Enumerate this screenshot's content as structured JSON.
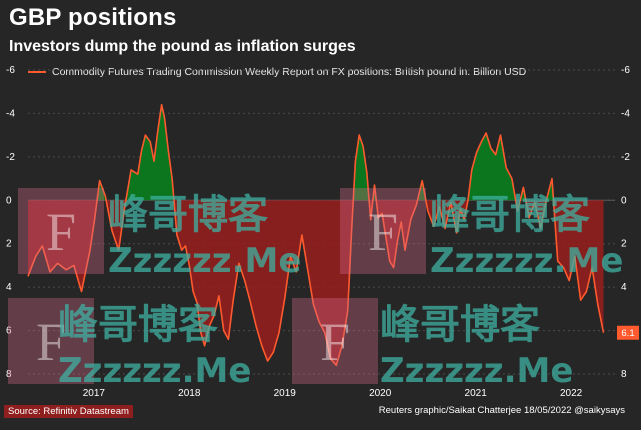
{
  "header": {
    "title": "GBP positions",
    "subtitle": "Investors dump the pound as inflation surges"
  },
  "colors": {
    "background": "#262626",
    "line": "#ff5a2e",
    "positive_fill": "#0a7a1c",
    "negative_fill": "#9a1f1f",
    "gridline": "#4a4a4a",
    "last_value_box": "#ff5a2e"
  },
  "chart_data": {
    "type": "area",
    "legend": "Commodity Futures Trading Commission Weekly Report on FX positions: British pound in. Billion USD",
    "legend_position": "top-left",
    "y_axis_inverted": true,
    "ylim": [
      -6,
      8
    ],
    "yticks": [
      "-6",
      "-4",
      "-2",
      "0",
      "2",
      "4",
      "6",
      "8"
    ],
    "xticks": [
      "2017",
      "2018",
      "2019",
      "2020",
      "2021",
      "2022"
    ],
    "xlim": [
      2016.35,
      2022.5
    ],
    "grid": "horizontal",
    "last_value_label": "6.1",
    "x": [
      2016.35,
      2016.43,
      2016.5,
      2016.58,
      2016.66,
      2016.75,
      2016.83,
      2016.91,
      2017.0,
      2017.05,
      2017.1,
      2017.16,
      2017.23,
      2017.3,
      2017.36,
      2017.43,
      2017.5,
      2017.54,
      2017.58,
      2017.63,
      2017.67,
      2017.71,
      2017.75,
      2017.78,
      2017.82,
      2017.86,
      2017.91,
      2017.96,
      2018.0,
      2018.04,
      2018.08,
      2018.12,
      2018.16,
      2018.2,
      2018.25,
      2018.3,
      2018.35,
      2018.4,
      2018.45,
      2018.5,
      2018.56,
      2018.62,
      2018.68,
      2018.74,
      2018.8,
      2018.86,
      2018.92,
      2018.98,
      2019.04,
      2019.1,
      2019.16,
      2019.22,
      2019.28,
      2019.34,
      2019.4,
      2019.46,
      2019.52,
      2019.58,
      2019.64,
      2019.7,
      2019.74,
      2019.78,
      2019.82,
      2019.86,
      2019.9,
      2019.94,
      2019.98,
      2020.02,
      2020.06,
      2020.1,
      2020.14,
      2020.18,
      2020.22,
      2020.26,
      2020.3,
      2020.36,
      2020.42,
      2020.48,
      2020.54,
      2020.6,
      2020.66,
      2020.72,
      2020.78,
      2020.84,
      2020.88,
      2020.92,
      2020.96,
      2021.0,
      2021.05,
      2021.1,
      2021.15,
      2021.2,
      2021.25,
      2021.3,
      2021.36,
      2021.42,
      2021.48,
      2021.54,
      2021.6,
      2021.66,
      2021.72,
      2021.78,
      2021.84,
      2021.9,
      2021.96,
      2022.02,
      2022.08,
      2022.14,
      2022.2,
      2022.26,
      2022.32,
      2022.38
    ],
    "values": [
      3.5,
      2.6,
      2.1,
      3.3,
      2.9,
      3.2,
      3.0,
      4.2,
      2.3,
      0.8,
      -0.9,
      -0.2,
      1.4,
      2.3,
      0.4,
      -1.4,
      -1.2,
      -2.3,
      -3.0,
      -2.7,
      -1.8,
      -3.2,
      -4.4,
      -3.8,
      -2.3,
      -1.0,
      1.6,
      2.3,
      2.1,
      3.0,
      4.2,
      4.7,
      6.1,
      6.7,
      5.8,
      5.3,
      4.4,
      6.0,
      6.4,
      4.6,
      2.9,
      3.7,
      4.7,
      5.8,
      6.7,
      7.4,
      7.0,
      6.1,
      4.5,
      2.6,
      3.3,
      1.6,
      3.2,
      4.8,
      5.6,
      6.1,
      7.3,
      7.6,
      6.7,
      5.1,
      1.4,
      -1.8,
      -3.0,
      -2.5,
      -1.3,
      0.9,
      -0.7,
      0.8,
      0.6,
      1.7,
      2.8,
      3.1,
      1.9,
      1.0,
      2.3,
      0.9,
      0.2,
      -0.9,
      0.5,
      1.2,
      0.3,
      1.3,
      0.1,
      1.5,
      0.4,
      0.9,
      0.0,
      -1.4,
      -2.2,
      -2.7,
      -3.1,
      -2.4,
      -2.1,
      -3.0,
      -1.5,
      -1.0,
      0.5,
      -0.6,
      0.8,
      0.1,
      1.3,
      0.0,
      -1.0,
      2.8,
      3.1,
      3.7,
      2.6,
      4.6,
      4.2,
      3.1,
      4.8,
      6.1
    ]
  },
  "watermark": {
    "brand": "峰哥博客",
    "domain": "Zzzzzz.Me"
  },
  "footer": {
    "source": "Source: Refinitiv Datastream",
    "credit": "Reuters graphic/Saikat Chatterjee 18/05/2022 @saikysays"
  }
}
